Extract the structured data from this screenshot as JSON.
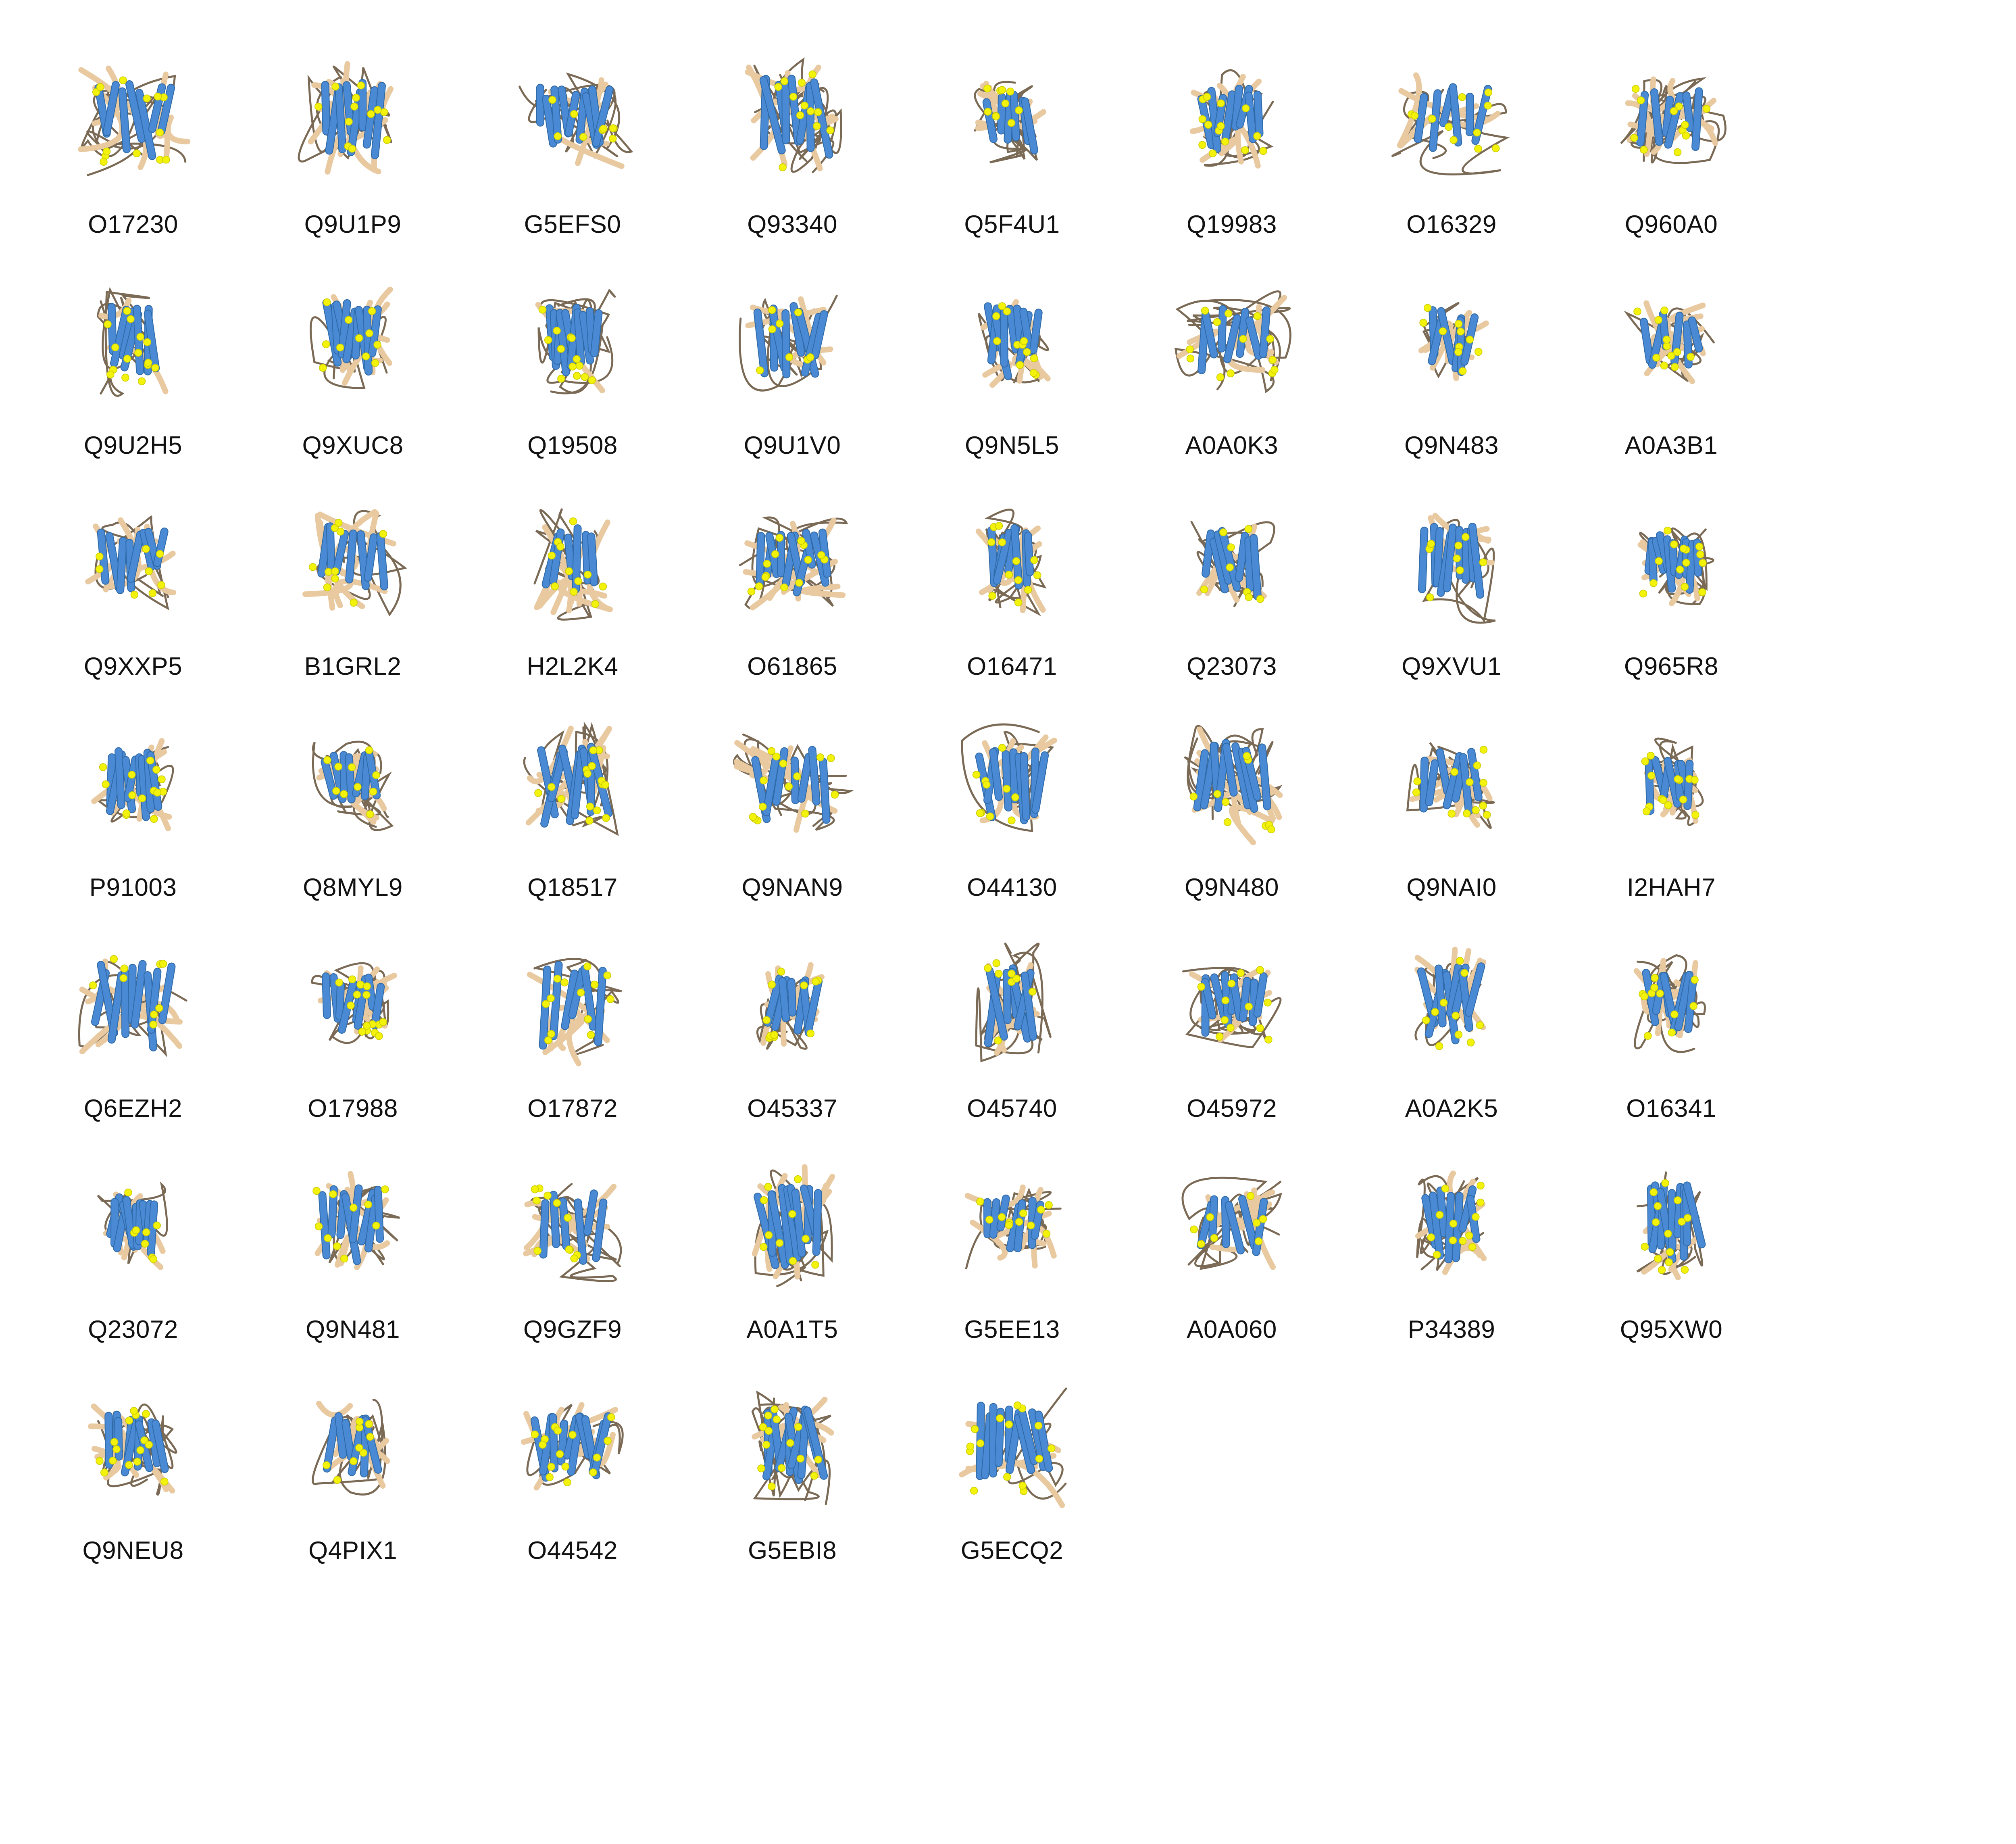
{
  "colors": {
    "helix": "#4a8ad4",
    "coil": "#e8c9a0",
    "loop": "#7a6a55",
    "atom": "#f2f20a",
    "label": "#111111",
    "background": "#ffffff"
  },
  "proteins": [
    "O17230",
    "Q9U1P9",
    "G5EFS0",
    "Q93340",
    "Q5F4U1",
    "Q19983",
    "O16329",
    "Q960A0",
    "Q9U2H5",
    "Q9XUC8",
    "Q19508",
    "Q9U1V0",
    "Q9N5L5",
    "A0A0K3",
    "Q9N483",
    "A0A3B1",
    "Q9XXP5",
    "B1GRL2",
    "H2L2K4",
    "O61865",
    "O16471",
    "Q23073",
    "Q9XVU1",
    "Q965R8",
    "P91003",
    "Q8MYL9",
    "Q18517",
    "Q9NAN9",
    "O44130",
    "Q9N480",
    "Q9NAI0",
    "I2HAH7",
    "Q6EZH2",
    "O17988",
    "O17872",
    "O45337",
    "O45740",
    "O45972",
    "A0A2K5",
    "O16341",
    "Q23072",
    "Q9N481",
    "Q9GZF9",
    "A0A1T5",
    "G5EE13",
    "A0A060",
    "P34389",
    "Q95XW0",
    "Q9NEU8",
    "Q4PIX1",
    "O44542",
    "G5EBI8",
    "G5ECQ2"
  ]
}
